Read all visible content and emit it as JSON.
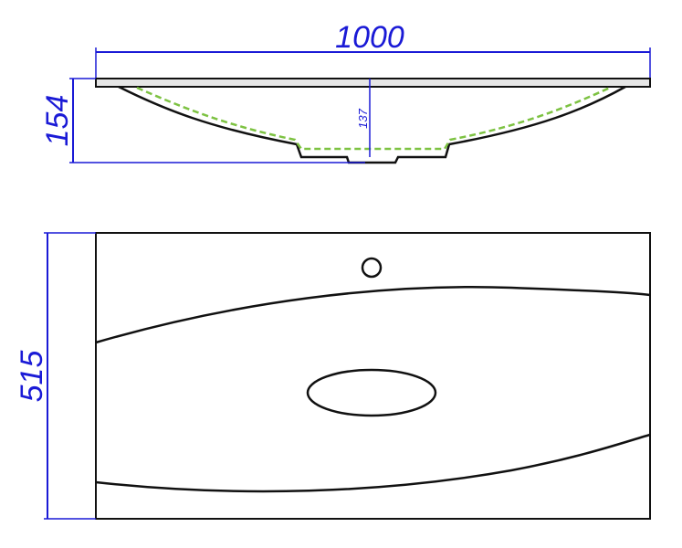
{
  "drawing": {
    "side_view": {
      "width_label": "1000",
      "height_label": "154",
      "bowl_depth_label": "137"
    },
    "top_view": {
      "depth_label": "515"
    },
    "colors": {
      "dimension": "#1a1ad6",
      "outline": "#111111",
      "inner_contour": "#7dc242"
    }
  }
}
